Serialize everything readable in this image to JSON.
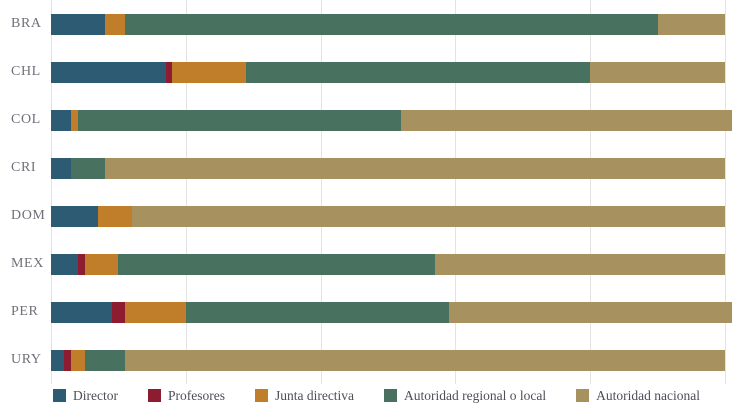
{
  "chart_data": {
    "type": "bar",
    "orientation": "horizontal",
    "stacked": true,
    "title": "",
    "xlabel": "",
    "ylabel": "",
    "xlim": [
      0,
      100
    ],
    "ticks": [
      0,
      20,
      40,
      60,
      80,
      100
    ],
    "grid": "vertical",
    "legend_position": "bottom",
    "categories": [
      "BRA",
      "CHL",
      "COL",
      "CRI",
      "DOM",
      "MEX",
      "PER",
      "URY"
    ],
    "series": [
      {
        "name": "Director",
        "color": "#2e5b74",
        "values": [
          8,
          17,
          3,
          3,
          7,
          4,
          9,
          2
        ]
      },
      {
        "name": "Profesores",
        "color": "#8e1c30",
        "values": [
          0,
          1,
          0,
          0,
          0,
          1,
          2,
          1
        ]
      },
      {
        "name": "Junta directiva",
        "color": "#c07e2b",
        "values": [
          3,
          11,
          1,
          0,
          5,
          5,
          9,
          2
        ]
      },
      {
        "name": "Autoridad regional o local",
        "color": "#49715f",
        "values": [
          79,
          51,
          48,
          5,
          0,
          47,
          39,
          6
        ]
      },
      {
        "name": "Autoridad nacional",
        "color": "#a6915f",
        "values": [
          10,
          20,
          49,
          92,
          88,
          43,
          42,
          89
        ]
      }
    ]
  },
  "colors": {
    "gridline": "#e3e3e6",
    "row_label": "#70707a",
    "legend_text": "#4e4e58",
    "background": "#ffffff"
  }
}
